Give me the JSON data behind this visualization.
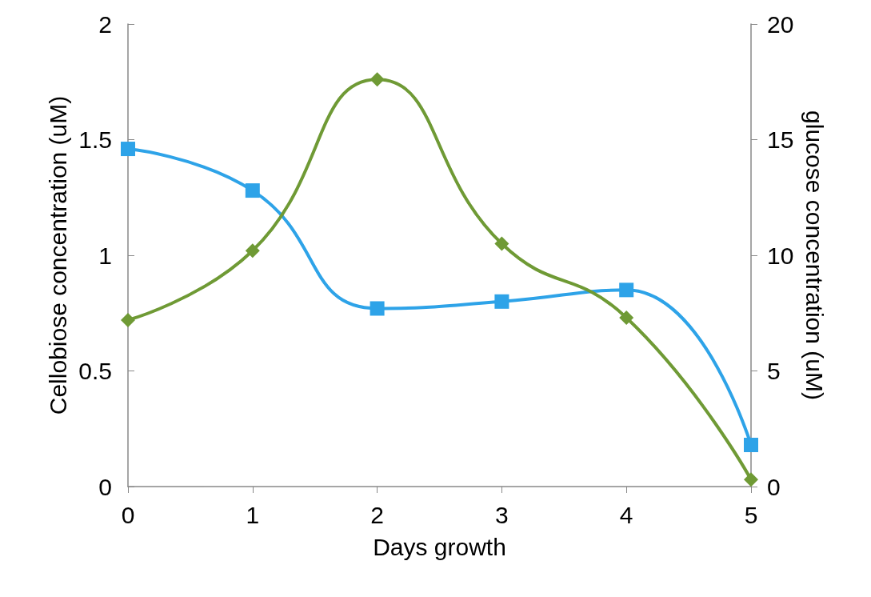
{
  "chart_data": {
    "type": "line",
    "xlabel": "Days growth",
    "ylabel": "Cellobiose concentration (uM)",
    "y2label": "glucose concentration (uM)",
    "x": [
      0,
      1,
      2,
      3,
      4,
      5
    ],
    "xlim": [
      0,
      5
    ],
    "xticks": [
      0,
      1,
      2,
      3,
      4,
      5
    ],
    "ylim": [
      0,
      2
    ],
    "yticks": [
      0,
      0.5,
      1,
      1.5,
      2
    ],
    "y2lim": [
      0,
      20
    ],
    "y2ticks": [
      0,
      5,
      10,
      15,
      20
    ],
    "grid": false,
    "line_style": "solid",
    "series": [
      {
        "color": "#2ea3e8",
        "marker": "square",
        "values": [
          1.46,
          1.28,
          0.77,
          0.8,
          0.85,
          0.18
        ]
      },
      {
        "color": "#6f9a35",
        "marker": "diamond",
        "axis": "y2",
        "values": [
          7.2,
          10.2,
          17.6,
          10.5,
          7.3,
          0.3
        ]
      }
    ]
  }
}
